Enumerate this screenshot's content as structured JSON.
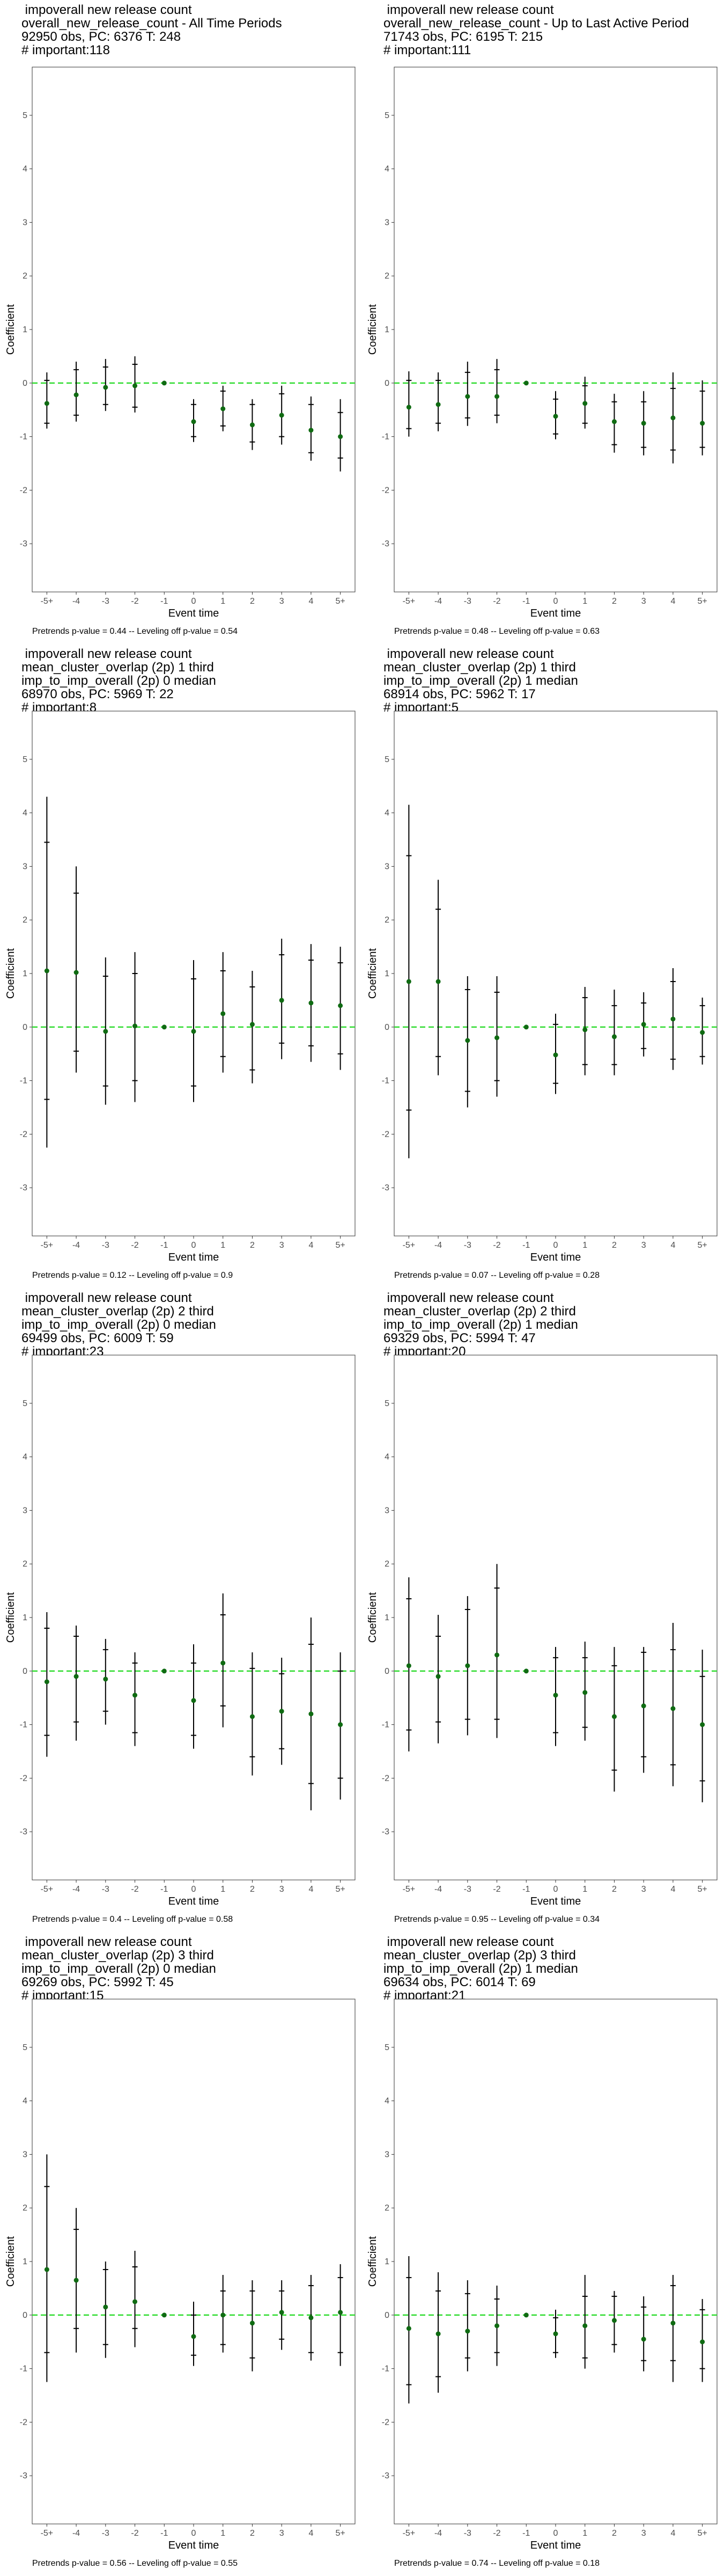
{
  "figure": {
    "panels": [
      {
        "title_lines": [
          " impoverall new release count",
          "overall_new_release_count - All Time Periods",
          "92950 obs, PC: 6376 T: 248",
          "# important:118"
        ],
        "caption": "Pretrends p-value = 0.44 -- Leveling off p-value = 0.54"
      },
      {
        "title_lines": [
          " impoverall new release count",
          "overall_new_release_count - Up to Last Active Period",
          "71743 obs, PC: 6195 T: 215",
          "# important:111"
        ],
        "caption": "Pretrends p-value = 0.48 -- Leveling off p-value = 0.63"
      },
      {
        "title_lines": [
          " impoverall new release count",
          "mean_cluster_overlap (2p) 1 third",
          "imp_to_imp_overall (2p) 0 median",
          "68970 obs, PC: 5969 T: 22",
          "# important:8"
        ],
        "caption": "Pretrends p-value = 0.12 -- Leveling off p-value = 0.9"
      },
      {
        "title_lines": [
          " impoverall new release count",
          "mean_cluster_overlap (2p) 1 third",
          "imp_to_imp_overall (2p) 1 median",
          "68914 obs, PC: 5962 T: 17",
          "# important:5"
        ],
        "caption": "Pretrends p-value = 0.07 -- Leveling off p-value = 0.28"
      },
      {
        "title_lines": [
          " impoverall new release count",
          "mean_cluster_overlap (2p) 2 third",
          "imp_to_imp_overall (2p) 0 median",
          "69499 obs, PC: 6009 T: 59",
          "# important:23"
        ],
        "caption": "Pretrends p-value = 0.4 -- Leveling off p-value = 0.58"
      },
      {
        "title_lines": [
          " impoverall new release count",
          "mean_cluster_overlap (2p) 2 third",
          "imp_to_imp_overall (2p) 1 median",
          "69329 obs, PC: 5994 T: 47",
          "# important:20"
        ],
        "caption": "Pretrends p-value = 0.95 -- Leveling off p-value = 0.34"
      },
      {
        "title_lines": [
          " impoverall new release count",
          "mean_cluster_overlap (2p) 3 third",
          "imp_to_imp_overall (2p) 0 median",
          "69269 obs, PC: 5992 T: 45",
          "# important:15"
        ],
        "caption": "Pretrends p-value = 0.56 -- Leveling off p-value = 0.55"
      },
      {
        "title_lines": [
          " impoverall new release count",
          "mean_cluster_overlap (2p) 3 third",
          "imp_to_imp_overall (2p) 1 median",
          "69634 obs, PC: 6014 T: 69",
          "# important:21"
        ],
        "caption": "Pretrends p-value = 0.74 -- Leveling off p-value = 0.18"
      }
    ]
  },
  "chart_data": [
    {
      "type": "scatter",
      "xlabel": "Event time",
      "ylabel": "Coefficient",
      "ylim": [
        -3.9,
        5.9
      ],
      "yticks": [
        -3,
        -2,
        -1,
        0,
        1,
        2,
        3,
        4,
        5
      ],
      "categories": [
        "-5+",
        "-4",
        "-3",
        "-2",
        "-1",
        "0",
        "1",
        "2",
        "3",
        "4",
        "5+"
      ],
      "estimate": [
        -0.38,
        -0.22,
        -0.08,
        -0.05,
        0,
        -0.72,
        -0.48,
        -0.78,
        -0.6,
        -0.88,
        -1.0
      ],
      "ci_outer_low": [
        -0.85,
        -0.72,
        -0.52,
        -0.55,
        0,
        -1.1,
        -0.9,
        -1.25,
        -1.15,
        -1.45,
        -1.65
      ],
      "ci_outer_high": [
        0.2,
        0.4,
        0.45,
        0.5,
        0,
        -0.3,
        -0.05,
        -0.3,
        -0.05,
        -0.25,
        -0.3
      ],
      "ci_inner_low": [
        -0.75,
        -0.6,
        -0.4,
        -0.45,
        0,
        -1.0,
        -0.8,
        -1.1,
        -1.0,
        -1.3,
        -1.4
      ],
      "ci_inner_high": [
        0.05,
        0.25,
        0.3,
        0.35,
        0,
        -0.4,
        -0.15,
        -0.4,
        -0.2,
        -0.4,
        -0.55
      ],
      "reference_line": 0,
      "colors": {
        "point": "#0f6b12",
        "bar": "#000000",
        "zero_line": "#33dd33"
      }
    },
    {
      "type": "scatter",
      "xlabel": "Event time",
      "ylabel": "Coefficient",
      "ylim": [
        -3.9,
        5.9
      ],
      "yticks": [
        -3,
        -2,
        -1,
        0,
        1,
        2,
        3,
        4,
        5
      ],
      "categories": [
        "-5+",
        "-4",
        "-3",
        "-2",
        "-1",
        "0",
        "1",
        "2",
        "3",
        "4",
        "5+"
      ],
      "estimate": [
        -0.45,
        -0.4,
        -0.25,
        -0.25,
        0,
        -0.62,
        -0.38,
        -0.72,
        -0.75,
        -0.65,
        -0.75
      ],
      "ci_outer_low": [
        -1.0,
        -0.9,
        -0.8,
        -0.75,
        0,
        -1.05,
        -0.85,
        -1.3,
        -1.35,
        -1.5,
        -1.35
      ],
      "ci_outer_high": [
        0.22,
        0.2,
        0.4,
        0.45,
        0,
        -0.15,
        0.12,
        -0.2,
        -0.15,
        0.2,
        0.05
      ],
      "ci_inner_low": [
        -0.85,
        -0.75,
        -0.65,
        -0.6,
        0,
        -0.95,
        -0.75,
        -1.15,
        -1.2,
        -1.25,
        -1.2
      ],
      "ci_inner_high": [
        0.05,
        0.05,
        0.2,
        0.25,
        0,
        -0.3,
        -0.05,
        -0.35,
        -0.35,
        -0.1,
        -0.15
      ],
      "reference_line": 0,
      "colors": {
        "point": "#0f6b12",
        "bar": "#000000",
        "zero_line": "#33dd33"
      }
    },
    {
      "type": "scatter",
      "xlabel": "Event time",
      "ylabel": "Coefficient",
      "ylim": [
        -3.9,
        5.9
      ],
      "yticks": [
        -3,
        -2,
        -1,
        0,
        1,
        2,
        3,
        4,
        5
      ],
      "categories": [
        "-5+",
        "-4",
        "-3",
        "-2",
        "-1",
        "0",
        "1",
        "2",
        "3",
        "4",
        "5+"
      ],
      "estimate": [
        1.05,
        1.02,
        -0.08,
        0.02,
        0,
        -0.08,
        0.25,
        0.05,
        0.5,
        0.45,
        0.4
      ],
      "ci_outer_low": [
        -2.25,
        -0.85,
        -1.45,
        -1.4,
        0,
        -1.4,
        -0.85,
        -1.05,
        -0.6,
        -0.65,
        -0.8
      ],
      "ci_outer_high": [
        4.3,
        3.0,
        1.3,
        1.4,
        0,
        1.25,
        1.4,
        1.05,
        1.65,
        1.55,
        1.5
      ],
      "ci_inner_low": [
        -1.35,
        -0.45,
        -1.1,
        -1.0,
        0,
        -1.1,
        -0.55,
        -0.8,
        -0.3,
        -0.35,
        -0.5
      ],
      "ci_inner_high": [
        3.45,
        2.5,
        0.95,
        1.0,
        0,
        0.9,
        1.05,
        0.75,
        1.35,
        1.25,
        1.2
      ],
      "reference_line": 0,
      "colors": {
        "point": "#0f6b12",
        "bar": "#000000",
        "zero_line": "#33dd33"
      }
    },
    {
      "type": "scatter",
      "xlabel": "Event time",
      "ylabel": "Coefficient",
      "ylim": [
        -3.9,
        5.9
      ],
      "yticks": [
        -3,
        -2,
        -1,
        0,
        1,
        2,
        3,
        4,
        5
      ],
      "categories": [
        "-5+",
        "-4",
        "-3",
        "-2",
        "-1",
        "0",
        "1",
        "2",
        "3",
        "4",
        "5+"
      ],
      "estimate": [
        0.85,
        0.85,
        -0.25,
        -0.2,
        0,
        -0.52,
        -0.05,
        -0.18,
        0.05,
        0.15,
        -0.1
      ],
      "ci_outer_low": [
        -2.45,
        -0.9,
        -1.5,
        -1.3,
        0,
        -1.25,
        -0.9,
        -0.9,
        -0.55,
        -0.8,
        -0.7
      ],
      "ci_outer_high": [
        4.15,
        2.75,
        0.95,
        0.95,
        0,
        0.25,
        0.75,
        0.7,
        0.65,
        1.1,
        0.55
      ],
      "ci_inner_low": [
        -1.55,
        -0.55,
        -1.2,
        -1.0,
        0,
        -1.05,
        -0.7,
        -0.7,
        -0.4,
        -0.6,
        -0.55
      ],
      "ci_inner_high": [
        3.2,
        2.2,
        0.7,
        0.65,
        0,
        0.05,
        0.55,
        0.4,
        0.45,
        0.85,
        0.4
      ],
      "reference_line": 0,
      "colors": {
        "point": "#0f6b12",
        "bar": "#000000",
        "zero_line": "#33dd33"
      }
    },
    {
      "type": "scatter",
      "xlabel": "Event time",
      "ylabel": "Coefficient",
      "ylim": [
        -3.9,
        5.9
      ],
      "yticks": [
        -3,
        -2,
        -1,
        0,
        1,
        2,
        3,
        4,
        5
      ],
      "categories": [
        "-5+",
        "-4",
        "-3",
        "-2",
        "-1",
        "0",
        "1",
        "2",
        "3",
        "4",
        "5+"
      ],
      "estimate": [
        -0.2,
        -0.1,
        -0.15,
        -0.45,
        0,
        -0.55,
        0.15,
        -0.85,
        -0.75,
        -0.8,
        -1.0
      ],
      "ci_outer_low": [
        -1.6,
        -1.3,
        -1.0,
        -1.4,
        0,
        -1.45,
        -1.05,
        -1.95,
        -1.75,
        -2.6,
        -2.4
      ],
      "ci_outer_high": [
        1.1,
        0.85,
        0.6,
        0.35,
        0,
        0.5,
        1.45,
        0.35,
        0.25,
        1.0,
        0.35
      ],
      "ci_inner_low": [
        -1.2,
        -0.95,
        -0.75,
        -1.15,
        0,
        -1.2,
        -0.65,
        -1.6,
        -1.45,
        -2.1,
        -2.0
      ],
      "ci_inner_high": [
        0.8,
        0.65,
        0.4,
        0.15,
        0,
        0.15,
        1.05,
        0.05,
        -0.05,
        0.5,
        0.0
      ],
      "reference_line": 0,
      "colors": {
        "point": "#0f6b12",
        "bar": "#000000",
        "zero_line": "#33dd33"
      }
    },
    {
      "type": "scatter",
      "xlabel": "Event time",
      "ylabel": "Coefficient",
      "ylim": [
        -3.9,
        5.9
      ],
      "yticks": [
        -3,
        -2,
        -1,
        0,
        1,
        2,
        3,
        4,
        5
      ],
      "categories": [
        "-5+",
        "-4",
        "-3",
        "-2",
        "-1",
        "0",
        "1",
        "2",
        "3",
        "4",
        "5+"
      ],
      "estimate": [
        0.1,
        -0.1,
        0.1,
        0.3,
        0,
        -0.45,
        -0.4,
        -0.85,
        -0.65,
        -0.7,
        -1.0
      ],
      "ci_outer_low": [
        -1.5,
        -1.35,
        -1.2,
        -1.25,
        0,
        -1.4,
        -1.3,
        -2.25,
        -1.9,
        -2.15,
        -2.45
      ],
      "ci_outer_high": [
        1.75,
        1.05,
        1.4,
        2.0,
        0,
        0.45,
        0.55,
        0.45,
        0.45,
        0.9,
        0.4
      ],
      "ci_inner_low": [
        -1.1,
        -0.95,
        -0.9,
        -0.9,
        0,
        -1.15,
        -1.05,
        -1.85,
        -1.6,
        -1.75,
        -2.05
      ],
      "ci_inner_high": [
        1.35,
        0.65,
        1.15,
        1.55,
        0,
        0.25,
        0.25,
        0.1,
        0.35,
        0.4,
        -0.1
      ],
      "reference_line": 0,
      "colors": {
        "point": "#0f6b12",
        "bar": "#000000",
        "zero_line": "#33dd33"
      }
    },
    {
      "type": "scatter",
      "xlabel": "Event time",
      "ylabel": "Coefficient",
      "ylim": [
        -3.9,
        5.9
      ],
      "yticks": [
        -3,
        -2,
        -1,
        0,
        1,
        2,
        3,
        4,
        5
      ],
      "categories": [
        "-5+",
        "-4",
        "-3",
        "-2",
        "-1",
        "0",
        "1",
        "2",
        "3",
        "4",
        "5+"
      ],
      "estimate": [
        0.85,
        0.65,
        0.15,
        0.25,
        0,
        -0.4,
        0.0,
        -0.15,
        0.05,
        -0.05,
        0.05
      ],
      "ci_outer_low": [
        -1.25,
        -0.7,
        -0.8,
        -0.6,
        0,
        -0.95,
        -0.7,
        -1.05,
        -0.65,
        -0.85,
        -0.95
      ],
      "ci_outer_high": [
        3.0,
        2.0,
        1.0,
        1.2,
        0,
        0.25,
        0.75,
        0.65,
        0.65,
        0.75,
        0.95
      ],
      "ci_inner_low": [
        -0.7,
        -0.25,
        -0.55,
        -0.25,
        0,
        -0.75,
        -0.55,
        -0.8,
        -0.45,
        -0.7,
        -0.7
      ],
      "ci_inner_high": [
        2.4,
        1.6,
        0.85,
        0.9,
        0,
        0.0,
        0.45,
        0.45,
        0.45,
        0.55,
        0.7
      ],
      "reference_line": 0,
      "colors": {
        "point": "#0f6b12",
        "bar": "#000000",
        "zero_line": "#33dd33"
      }
    },
    {
      "type": "scatter",
      "xlabel": "Event time",
      "ylabel": "Coefficient",
      "ylim": [
        -3.9,
        5.9
      ],
      "yticks": [
        -3,
        -2,
        -1,
        0,
        1,
        2,
        3,
        4,
        5
      ],
      "categories": [
        "-5+",
        "-4",
        "-3",
        "-2",
        "-1",
        "0",
        "1",
        "2",
        "3",
        "4",
        "5+"
      ],
      "estimate": [
        -0.25,
        -0.35,
        -0.3,
        -0.2,
        0,
        -0.35,
        -0.2,
        -0.1,
        -0.45,
        -0.15,
        -0.5
      ],
      "ci_outer_low": [
        -1.65,
        -1.45,
        -1.05,
        -0.95,
        0,
        -0.8,
        -1.0,
        -0.7,
        -1.05,
        -1.25,
        -1.25
      ],
      "ci_outer_high": [
        1.1,
        0.8,
        0.65,
        0.55,
        0,
        0.1,
        0.75,
        0.45,
        0.35,
        0.75,
        0.3
      ],
      "ci_inner_low": [
        -1.3,
        -1.15,
        -0.8,
        -0.7,
        0,
        -0.7,
        -0.8,
        -0.55,
        -0.85,
        -0.85,
        -1.0
      ],
      "ci_inner_high": [
        0.7,
        0.45,
        0.4,
        0.3,
        0,
        -0.05,
        0.35,
        0.35,
        0.15,
        0.55,
        0.1
      ],
      "reference_line": 0,
      "colors": {
        "point": "#0f6b12",
        "bar": "#000000",
        "zero_line": "#33dd33"
      }
    }
  ]
}
